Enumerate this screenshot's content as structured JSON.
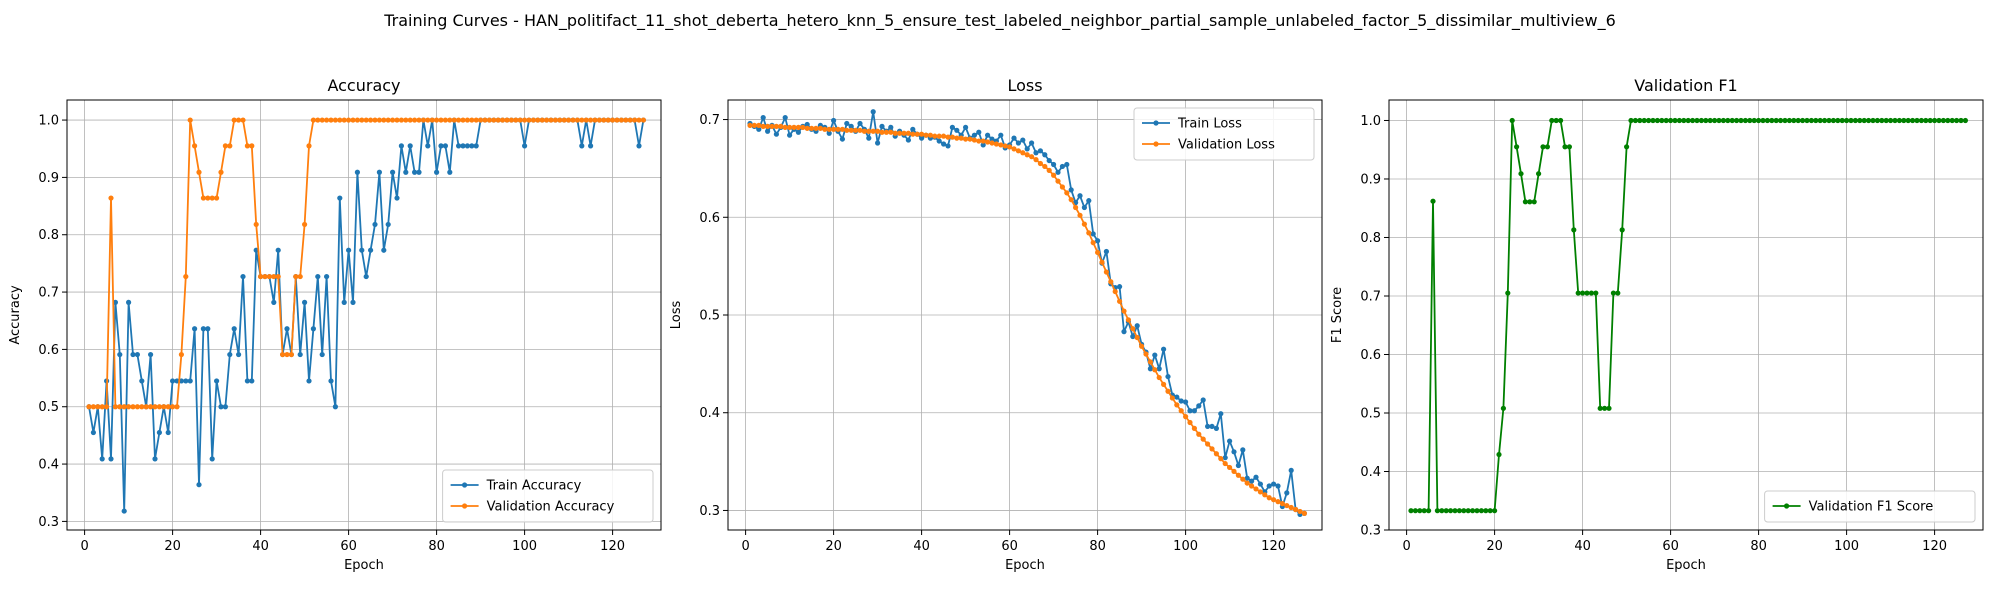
{
  "figure": {
    "suptitle": "Training Curves - HAN_politifact_11_shot_deberta_hetero_knn_5_ensure_test_labeled_neighbor_partial_sample_unlabeled_factor_5_dissimilar_multiview_6"
  },
  "colors": {
    "blue": "#1f77b4",
    "orange": "#ff7f0e",
    "green": "#008000",
    "grid": "#b0b0b0"
  },
  "chart_data": [
    {
      "type": "line",
      "title": "Accuracy",
      "xlabel": "Epoch",
      "ylabel": "Accuracy",
      "xlim": [
        -4,
        131
      ],
      "ylim": [
        0.285,
        1.035
      ],
      "xticks": [
        0,
        20,
        40,
        60,
        80,
        100,
        120
      ],
      "yticks": [
        0.3,
        0.4,
        0.5,
        0.6,
        0.7,
        0.8,
        0.9,
        1.0
      ],
      "grid": true,
      "legend_position": "lower right",
      "x": [
        1,
        2,
        3,
        4,
        5,
        6,
        7,
        8,
        9,
        10,
        11,
        12,
        13,
        14,
        15,
        16,
        17,
        18,
        19,
        20,
        21,
        22,
        23,
        24,
        25,
        26,
        27,
        28,
        29,
        30,
        31,
        32,
        33,
        34,
        35,
        36,
        37,
        38,
        39,
        40,
        41,
        42,
        43,
        44,
        45,
        46,
        47,
        48,
        49,
        50,
        51,
        52,
        53,
        54,
        55,
        56,
        57,
        58,
        59,
        60,
        61,
        62,
        63,
        64,
        65,
        66,
        67,
        68,
        69,
        70,
        71,
        72,
        73,
        74,
        75,
        76,
        77,
        78,
        79,
        80,
        81,
        82,
        83,
        84,
        85,
        86,
        87,
        88,
        89,
        90,
        91,
        92,
        93,
        94,
        95,
        96,
        97,
        98,
        99,
        100,
        101,
        102,
        103,
        104,
        105,
        106,
        107,
        108,
        109,
        110,
        111,
        112,
        113,
        114,
        115,
        116,
        117,
        118,
        119,
        120,
        121,
        122,
        123,
        124,
        125,
        126,
        127
      ],
      "series": [
        {
          "name": "Train Accuracy",
          "color": "#1f77b4",
          "values": [
            0.5,
            0.455,
            0.5,
            0.409,
            0.545,
            0.409,
            0.682,
            0.591,
            0.318,
            0.682,
            0.591,
            0.591,
            0.545,
            0.5,
            0.591,
            0.409,
            0.455,
            0.5,
            0.455,
            0.545,
            0.545,
            0.545,
            0.545,
            0.545,
            0.636,
            0.364,
            0.636,
            0.636,
            0.409,
            0.545,
            0.5,
            0.5,
            0.591,
            0.636,
            0.591,
            0.727,
            0.545,
            0.545,
            0.773,
            0.727,
            0.727,
            0.727,
            0.682,
            0.773,
            0.591,
            0.636,
            0.591,
            0.727,
            0.591,
            0.682,
            0.545,
            0.636,
            0.727,
            0.591,
            0.727,
            0.545,
            0.5,
            0.864,
            0.682,
            0.773,
            0.682,
            0.909,
            0.773,
            0.727,
            0.773,
            0.818,
            0.909,
            0.773,
            0.818,
            0.909,
            0.864,
            0.955,
            0.909,
            0.955,
            0.909,
            0.909,
            1.0,
            0.955,
            1.0,
            0.909,
            0.955,
            0.955,
            0.909,
            1.0,
            0.955,
            0.955,
            0.955,
            0.955,
            0.955,
            1.0,
            1.0,
            1.0,
            1.0,
            1.0,
            1.0,
            1.0,
            1.0,
            1.0,
            1.0,
            0.955,
            1.0,
            1.0,
            1.0,
            1.0,
            1.0,
            1.0,
            1.0,
            1.0,
            1.0,
            1.0,
            1.0,
            1.0,
            0.955,
            1.0,
            0.955,
            1.0,
            1.0,
            1.0,
            1.0,
            1.0,
            1.0,
            1.0,
            1.0,
            1.0,
            1.0,
            0.955,
            1.0
          ]
        },
        {
          "name": "Validation Accuracy",
          "color": "#ff7f0e",
          "values": [
            0.5,
            0.5,
            0.5,
            0.5,
            0.5,
            0.864,
            0.5,
            0.5,
            0.5,
            0.5,
            0.5,
            0.5,
            0.5,
            0.5,
            0.5,
            0.5,
            0.5,
            0.5,
            0.5,
            0.5,
            0.5,
            0.591,
            0.727,
            1.0,
            0.955,
            0.909,
            0.864,
            0.864,
            0.864,
            0.864,
            0.909,
            0.955,
            0.955,
            1.0,
            1.0,
            1.0,
            0.955,
            0.955,
            0.818,
            0.727,
            0.727,
            0.727,
            0.727,
            0.727,
            0.591,
            0.591,
            0.591,
            0.727,
            0.727,
            0.818,
            0.955,
            1.0,
            1.0,
            1.0,
            1.0,
            1.0,
            1.0,
            1.0,
            1.0,
            1.0,
            1.0,
            1.0,
            1.0,
            1.0,
            1.0,
            1.0,
            1.0,
            1.0,
            1.0,
            1.0,
            1.0,
            1.0,
            1.0,
            1.0,
            1.0,
            1.0,
            1.0,
            1.0,
            1.0,
            1.0,
            1.0,
            1.0,
            1.0,
            1.0,
            1.0,
            1.0,
            1.0,
            1.0,
            1.0,
            1.0,
            1.0,
            1.0,
            1.0,
            1.0,
            1.0,
            1.0,
            1.0,
            1.0,
            1.0,
            1.0,
            1.0,
            1.0,
            1.0,
            1.0,
            1.0,
            1.0,
            1.0,
            1.0,
            1.0,
            1.0,
            1.0,
            1.0,
            1.0,
            1.0,
            1.0,
            1.0,
            1.0,
            1.0,
            1.0,
            1.0,
            1.0,
            1.0,
            1.0,
            1.0,
            1.0,
            1.0,
            1.0
          ]
        }
      ]
    },
    {
      "type": "line",
      "title": "Loss",
      "xlabel": "Epoch",
      "ylabel": "Loss",
      "xlim": [
        -4,
        131
      ],
      "ylim": [
        0.28,
        0.72
      ],
      "xticks": [
        0,
        20,
        40,
        60,
        80,
        100,
        120
      ],
      "yticks": [
        0.3,
        0.4,
        0.5,
        0.6,
        0.7
      ],
      "grid": true,
      "legend_position": "upper right",
      "x": [
        1,
        2,
        3,
        4,
        5,
        6,
        7,
        8,
        9,
        10,
        11,
        12,
        13,
        14,
        15,
        16,
        17,
        18,
        19,
        20,
        21,
        22,
        23,
        24,
        25,
        26,
        27,
        28,
        29,
        30,
        31,
        32,
        33,
        34,
        35,
        36,
        37,
        38,
        39,
        40,
        41,
        42,
        43,
        44,
        45,
        46,
        47,
        48,
        49,
        50,
        51,
        52,
        53,
        54,
        55,
        56,
        57,
        58,
        59,
        60,
        61,
        62,
        63,
        64,
        65,
        66,
        67,
        68,
        69,
        70,
        71,
        72,
        73,
        74,
        75,
        76,
        77,
        78,
        79,
        80,
        81,
        82,
        83,
        84,
        85,
        86,
        87,
        88,
        89,
        90,
        91,
        92,
        93,
        94,
        95,
        96,
        97,
        98,
        99,
        100,
        101,
        102,
        103,
        104,
        105,
        106,
        107,
        108,
        109,
        110,
        111,
        112,
        113,
        114,
        115,
        116,
        117,
        118,
        119,
        120,
        121,
        122,
        123,
        124,
        125,
        126,
        127
      ],
      "series": [
        {
          "name": "Train Loss",
          "color": "#1f77b4",
          "values": [
            0.696,
            0.693,
            0.69,
            0.702,
            0.688,
            0.694,
            0.685,
            0.692,
            0.702,
            0.684,
            0.69,
            0.687,
            0.693,
            0.695,
            0.69,
            0.688,
            0.694,
            0.692,
            0.686,
            0.699,
            0.688,
            0.68,
            0.696,
            0.693,
            0.688,
            0.696,
            0.69,
            0.681,
            0.708,
            0.676,
            0.693,
            0.688,
            0.692,
            0.683,
            0.688,
            0.684,
            0.679,
            0.69,
            0.685,
            0.681,
            0.684,
            0.681,
            0.682,
            0.678,
            0.675,
            0.673,
            0.692,
            0.689,
            0.684,
            0.692,
            0.681,
            0.684,
            0.687,
            0.674,
            0.684,
            0.68,
            0.678,
            0.684,
            0.671,
            0.674,
            0.681,
            0.676,
            0.679,
            0.67,
            0.676,
            0.666,
            0.668,
            0.664,
            0.658,
            0.654,
            0.646,
            0.652,
            0.654,
            0.628,
            0.615,
            0.622,
            0.61,
            0.617,
            0.583,
            0.576,
            0.553,
            0.565,
            0.532,
            0.528,
            0.529,
            0.483,
            0.493,
            0.478,
            0.489,
            0.47,
            0.462,
            0.445,
            0.459,
            0.445,
            0.465,
            0.437,
            0.418,
            0.416,
            0.412,
            0.411,
            0.402,
            0.402,
            0.407,
            0.413,
            0.386,
            0.386,
            0.384,
            0.399,
            0.354,
            0.371,
            0.36,
            0.346,
            0.362,
            0.333,
            0.33,
            0.334,
            0.327,
            0.319,
            0.325,
            0.327,
            0.325,
            0.304,
            0.318,
            0.341,
            0.301,
            0.296,
            0.297
          ]
        },
        {
          "name": "Validation Loss",
          "color": "#ff7f0e",
          "values": [
            0.694,
            0.694,
            0.694,
            0.693,
            0.693,
            0.693,
            0.693,
            0.693,
            0.692,
            0.692,
            0.692,
            0.692,
            0.692,
            0.691,
            0.691,
            0.691,
            0.691,
            0.69,
            0.69,
            0.69,
            0.69,
            0.69,
            0.689,
            0.689,
            0.689,
            0.689,
            0.688,
            0.688,
            0.688,
            0.688,
            0.687,
            0.687,
            0.687,
            0.686,
            0.686,
            0.686,
            0.686,
            0.685,
            0.685,
            0.685,
            0.684,
            0.684,
            0.683,
            0.683,
            0.683,
            0.682,
            0.682,
            0.681,
            0.681,
            0.68,
            0.68,
            0.679,
            0.678,
            0.678,
            0.677,
            0.676,
            0.675,
            0.674,
            0.673,
            0.672,
            0.67,
            0.668,
            0.666,
            0.664,
            0.662,
            0.659,
            0.655,
            0.652,
            0.648,
            0.643,
            0.637,
            0.631,
            0.625,
            0.618,
            0.61,
            0.602,
            0.593,
            0.584,
            0.574,
            0.564,
            0.554,
            0.544,
            0.534,
            0.524,
            0.514,
            0.504,
            0.495,
            0.486,
            0.477,
            0.468,
            0.46,
            0.452,
            0.444,
            0.436,
            0.429,
            0.422,
            0.415,
            0.408,
            0.402,
            0.396,
            0.39,
            0.384,
            0.378,
            0.373,
            0.368,
            0.363,
            0.358,
            0.353,
            0.348,
            0.344,
            0.34,
            0.336,
            0.332,
            0.328,
            0.325,
            0.322,
            0.319,
            0.316,
            0.313,
            0.311,
            0.309,
            0.307,
            0.305,
            0.303,
            0.301,
            0.299,
            0.297
          ]
        }
      ]
    },
    {
      "type": "line",
      "title": "Validation F1",
      "xlabel": "Epoch",
      "ylabel": "F1 Score",
      "xlim": [
        -4,
        131
      ],
      "ylim": [
        0.3,
        1.035
      ],
      "xticks": [
        0,
        20,
        40,
        60,
        80,
        100,
        120
      ],
      "yticks": [
        0.3,
        0.4,
        0.5,
        0.6,
        0.7,
        0.8,
        0.9,
        1.0
      ],
      "grid": true,
      "legend_position": "lower right",
      "x": [
        1,
        2,
        3,
        4,
        5,
        6,
        7,
        8,
        9,
        10,
        11,
        12,
        13,
        14,
        15,
        16,
        17,
        18,
        19,
        20,
        21,
        22,
        23,
        24,
        25,
        26,
        27,
        28,
        29,
        30,
        31,
        32,
        33,
        34,
        35,
        36,
        37,
        38,
        39,
        40,
        41,
        42,
        43,
        44,
        45,
        46,
        47,
        48,
        49,
        50,
        51,
        52,
        53,
        54,
        55,
        56,
        57,
        58,
        59,
        60,
        61,
        62,
        63,
        64,
        65,
        66,
        67,
        68,
        69,
        70,
        71,
        72,
        73,
        74,
        75,
        76,
        77,
        78,
        79,
        80,
        81,
        82,
        83,
        84,
        85,
        86,
        87,
        88,
        89,
        90,
        91,
        92,
        93,
        94,
        95,
        96,
        97,
        98,
        99,
        100,
        101,
        102,
        103,
        104,
        105,
        106,
        107,
        108,
        109,
        110,
        111,
        112,
        113,
        114,
        115,
        116,
        117,
        118,
        119,
        120,
        121,
        122,
        123,
        124,
        125,
        126,
        127
      ],
      "series": [
        {
          "name": "Validation F1 Score",
          "color": "#008000",
          "values": [
            0.333,
            0.333,
            0.333,
            0.333,
            0.333,
            0.862,
            0.333,
            0.333,
            0.333,
            0.333,
            0.333,
            0.333,
            0.333,
            0.333,
            0.333,
            0.333,
            0.333,
            0.333,
            0.333,
            0.333,
            0.429,
            0.508,
            0.705,
            1.0,
            0.955,
            0.909,
            0.861,
            0.861,
            0.861,
            0.909,
            0.955,
            0.955,
            1.0,
            1.0,
            1.0,
            0.955,
            0.955,
            0.813,
            0.705,
            0.705,
            0.705,
            0.705,
            0.705,
            0.508,
            0.508,
            0.508,
            0.705,
            0.705,
            0.813,
            0.955,
            1.0,
            1.0,
            1.0,
            1.0,
            1.0,
            1.0,
            1.0,
            1.0,
            1.0,
            1.0,
            1.0,
            1.0,
            1.0,
            1.0,
            1.0,
            1.0,
            1.0,
            1.0,
            1.0,
            1.0,
            1.0,
            1.0,
            1.0,
            1.0,
            1.0,
            1.0,
            1.0,
            1.0,
            1.0,
            1.0,
            1.0,
            1.0,
            1.0,
            1.0,
            1.0,
            1.0,
            1.0,
            1.0,
            1.0,
            1.0,
            1.0,
            1.0,
            1.0,
            1.0,
            1.0,
            1.0,
            1.0,
            1.0,
            1.0,
            1.0,
            1.0,
            1.0,
            1.0,
            1.0,
            1.0,
            1.0,
            1.0,
            1.0,
            1.0,
            1.0,
            1.0,
            1.0,
            1.0,
            1.0,
            1.0,
            1.0,
            1.0,
            1.0,
            1.0,
            1.0,
            1.0,
            1.0,
            1.0,
            1.0,
            1.0,
            1.0,
            1.0
          ]
        }
      ]
    }
  ]
}
